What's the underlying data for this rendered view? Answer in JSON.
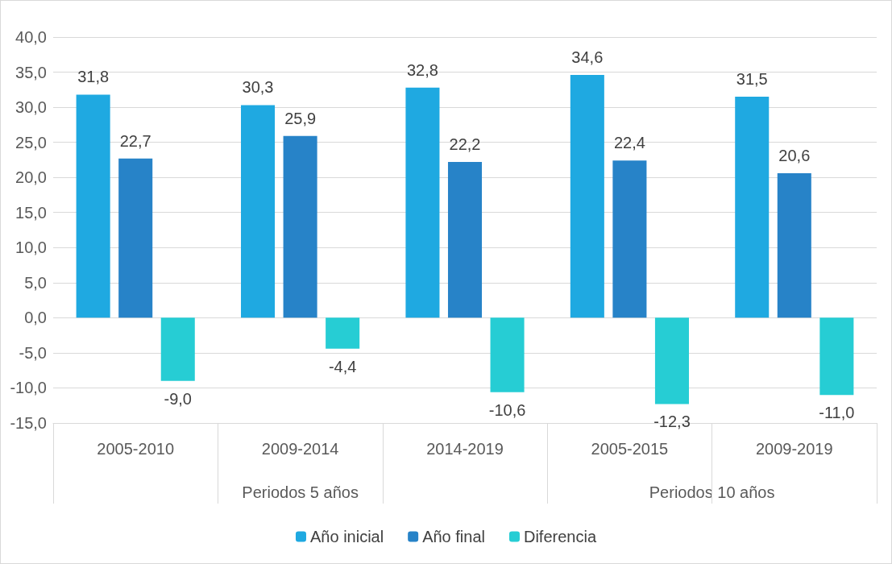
{
  "chart_data": {
    "type": "bar",
    "categories": [
      "2005-2010",
      "2009-2014",
      "2014-2019",
      "2005-2015",
      "2009-2019"
    ],
    "series": [
      {
        "name": "Año inicial",
        "color": "#1fa9e1",
        "values": [
          31.8,
          30.3,
          32.8,
          34.6,
          31.5
        ],
        "value_labels": [
          "31,8",
          "30,3",
          "32,8",
          "34,6",
          "31,5"
        ]
      },
      {
        "name": "Año final",
        "color": "#2783c8",
        "values": [
          22.7,
          25.9,
          22.2,
          22.4,
          20.6
        ],
        "value_labels": [
          "22,7",
          "25,9",
          "22,2",
          "22,4",
          "20,6"
        ]
      },
      {
        "name": "Diferencia",
        "color": "#26cdd4",
        "values": [
          -9.0,
          -4.4,
          -10.6,
          -12.3,
          -11.0
        ],
        "value_labels": [
          "-9,0",
          "-4,4",
          "-10,6",
          "-12,3",
          "-11,0"
        ]
      }
    ],
    "ylim": [
      -15,
      40
    ],
    "yticks": [
      {
        "value": -15,
        "label": "-15,0"
      },
      {
        "value": -10,
        "label": "-10,0"
      },
      {
        "value": -5,
        "label": "-5,0"
      },
      {
        "value": 0,
        "label": "0,0"
      },
      {
        "value": 5,
        "label": "5,0"
      },
      {
        "value": 10,
        "label": "10,0"
      },
      {
        "value": 15,
        "label": "15,0"
      },
      {
        "value": 20,
        "label": "20,0"
      },
      {
        "value": 25,
        "label": "25,0"
      },
      {
        "value": 30,
        "label": "30,0"
      },
      {
        "value": 35,
        "label": "35,0"
      },
      {
        "value": 40,
        "label": "40,0"
      }
    ],
    "annotations": [
      "Periodos 5 años",
      "Periodos 10 años"
    ],
    "grid": "y",
    "legend": "bottom"
  }
}
